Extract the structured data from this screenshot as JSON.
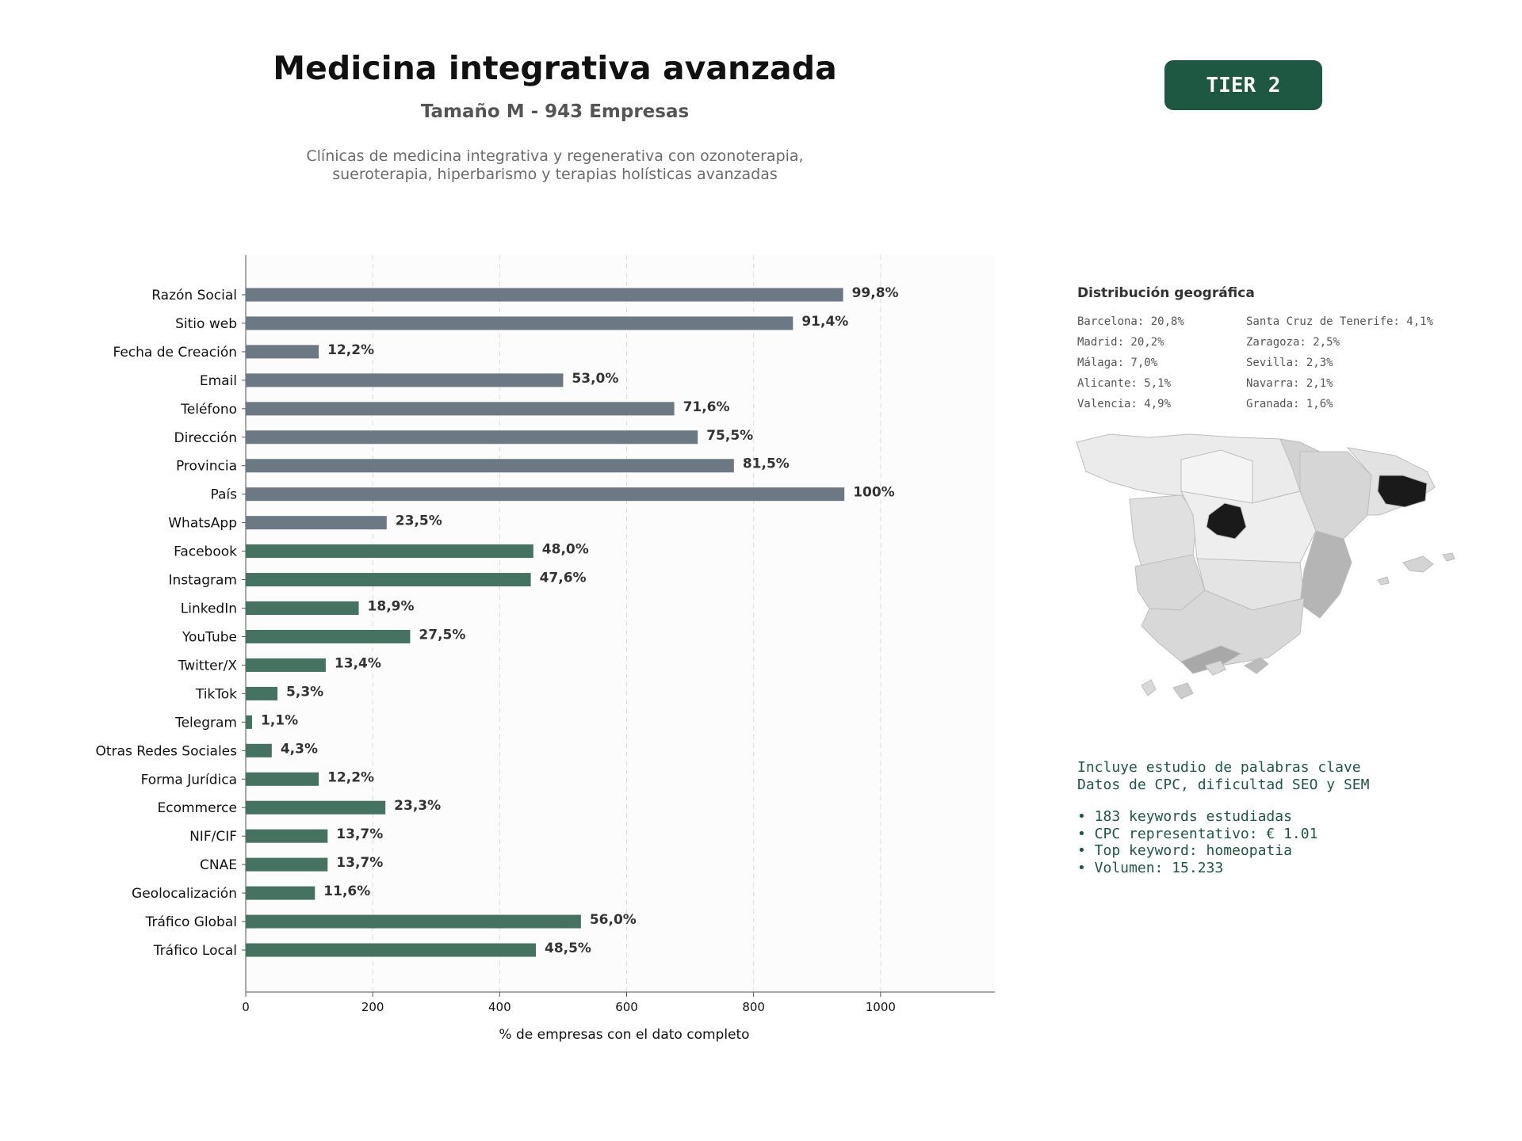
{
  "header": {
    "title": "Medicina integrativa avanzada",
    "subtitle": "Tamaño M - 943 Empresas",
    "description_lines": [
      "Clínicas de medicina integrativa y regenerativa con ozonoterapia,",
      "sueroterapia, hiperbarismo y terapias holísticas avanzadas"
    ],
    "tier": "TIER 2"
  },
  "chart_data": {
    "type": "bar",
    "orientation": "horizontal",
    "xlabel": "% de empresas con el dato completo",
    "ylabel": "",
    "xlim": [
      0,
      1180
    ],
    "xticks": [
      0,
      200,
      400,
      600,
      800,
      1000
    ],
    "grid": "vertical dashed",
    "categories": [
      "Razón Social",
      "Sitio web",
      "Fecha de Creación",
      "Email",
      "Teléfono",
      "Dirección",
      "Provincia",
      "País",
      "WhatsApp",
      "Facebook",
      "Instagram",
      "LinkedIn",
      "YouTube",
      "Twitter/X",
      "TikTok",
      "Telegram",
      "Otras Redes Sociales",
      "Forma Jurídica",
      "Ecommerce",
      "NIF/CIF",
      "CNAE",
      "Geolocalización",
      "Tráfico Global",
      "Tráfico Local"
    ],
    "values": [
      941,
      862,
      115,
      500,
      675,
      712,
      769,
      943,
      222,
      453,
      449,
      178,
      259,
      126,
      50,
      10,
      41,
      115,
      220,
      129,
      129,
      109,
      528,
      457
    ],
    "labels": [
      "99,8%",
      "91,4%",
      "12,2%",
      "53,0%",
      "71,6%",
      "75,5%",
      "81,5%",
      "100%",
      "23,5%",
      "48,0%",
      "47,6%",
      "18,9%",
      "27,5%",
      "13,4%",
      "5,3%",
      "1,1%",
      "4,3%",
      "12,2%",
      "23,3%",
      "13,7%",
      "13,7%",
      "11,6%",
      "56,0%",
      "48,5%"
    ],
    "colors": [
      "#6c7883",
      "#6c7883",
      "#6c7883",
      "#6c7883",
      "#6c7883",
      "#6c7883",
      "#6c7883",
      "#6c7883",
      "#6c7883",
      "#467262",
      "#467262",
      "#467262",
      "#467262",
      "#467262",
      "#467262",
      "#467262",
      "#467262",
      "#467262",
      "#467262",
      "#467262",
      "#467262",
      "#467262",
      "#467262",
      "#467262"
    ]
  },
  "geo": {
    "title": "Distribución geográfica",
    "items": [
      "Barcelona: 20,8%",
      "Santa Cruz de Tenerife: 4,1%",
      "Madrid: 20,2%",
      "Zaragoza: 2,5%",
      "Málaga: 7,0%",
      "Sevilla: 2,3%",
      "Alicante: 5,1%",
      "Navarra: 2,1%",
      "Valencia: 4,9%",
      "Granada: 1,6%"
    ]
  },
  "keywords": {
    "intro_lines": [
      "Incluye estudio de palabras clave",
      "Datos de CPC, dificultad SEO y SEM"
    ],
    "bullets": [
      "• 183 keywords estudiadas",
      "• CPC representativo: € 1.01",
      "• Top keyword: homeopatia",
      "• Volumen: 15.233"
    ]
  }
}
